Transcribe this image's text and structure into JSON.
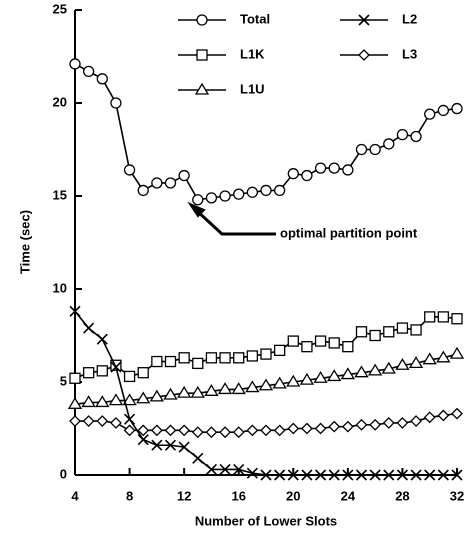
{
  "chart_data": {
    "type": "line",
    "xlabel": "Number of Lower Slots",
    "ylabel": "Time (sec)",
    "annotation": "optimal partition point",
    "x": [
      4,
      5,
      6,
      7,
      8,
      9,
      10,
      11,
      12,
      13,
      14,
      15,
      16,
      17,
      18,
      19,
      20,
      21,
      22,
      23,
      24,
      25,
      26,
      27,
      28,
      29,
      30,
      31,
      32
    ],
    "series": [
      {
        "name": "Total",
        "color": "#000000",
        "marker": "circle",
        "values": [
          22.1,
          21.7,
          21.3,
          20.0,
          16.4,
          15.3,
          15.7,
          15.7,
          16.1,
          14.8,
          14.9,
          15.0,
          15.1,
          15.2,
          15.3,
          15.3,
          16.2,
          16.1,
          16.5,
          16.5,
          16.4,
          17.5,
          17.5,
          17.8,
          18.3,
          18.2,
          19.4,
          19.6,
          19.7
        ]
      },
      {
        "name": "L1K",
        "color": "#000000",
        "marker": "square",
        "values": [
          5.2,
          5.5,
          5.6,
          5.9,
          5.3,
          5.5,
          6.1,
          6.1,
          6.3,
          6.0,
          6.3,
          6.3,
          6.3,
          6.4,
          6.5,
          6.7,
          7.2,
          6.9,
          7.2,
          7.1,
          6.9,
          7.7,
          7.5,
          7.7,
          7.9,
          7.8,
          8.5,
          8.5,
          8.4
        ]
      },
      {
        "name": "L1U",
        "color": "#000000",
        "marker": "triangle",
        "values": [
          3.8,
          3.9,
          3.9,
          4.0,
          4.0,
          4.1,
          4.2,
          4.3,
          4.4,
          4.4,
          4.5,
          4.6,
          4.6,
          4.7,
          4.8,
          4.9,
          5.0,
          5.1,
          5.2,
          5.3,
          5.4,
          5.5,
          5.6,
          5.7,
          5.9,
          6.0,
          6.2,
          6.3,
          6.5
        ]
      },
      {
        "name": "L2",
        "color": "#000000",
        "marker": "x",
        "values": [
          8.8,
          7.9,
          7.3,
          5.8,
          3.0,
          1.9,
          1.6,
          1.6,
          1.5,
          0.9,
          0.3,
          0.3,
          0.3,
          0.1,
          0,
          0,
          0,
          0,
          0,
          0,
          0,
          0,
          0,
          0,
          0,
          0,
          0,
          0,
          0
        ]
      },
      {
        "name": "L3",
        "color": "#000000",
        "marker": "diamond",
        "values": [
          2.9,
          2.9,
          2.9,
          2.8,
          2.4,
          2.4,
          2.4,
          2.4,
          2.4,
          2.3,
          2.3,
          2.3,
          2.3,
          2.4,
          2.4,
          2.4,
          2.5,
          2.5,
          2.5,
          2.6,
          2.6,
          2.7,
          2.7,
          2.8,
          2.8,
          2.9,
          3.1,
          3.2,
          3.3
        ]
      }
    ],
    "xlim": [
      4,
      32
    ],
    "xticks": [
      4,
      8,
      12,
      16,
      20,
      24,
      28,
      32
    ],
    "ylim": [
      0,
      25
    ],
    "yticks": [
      0,
      5,
      10,
      15,
      20,
      25
    ],
    "grid": false
  }
}
